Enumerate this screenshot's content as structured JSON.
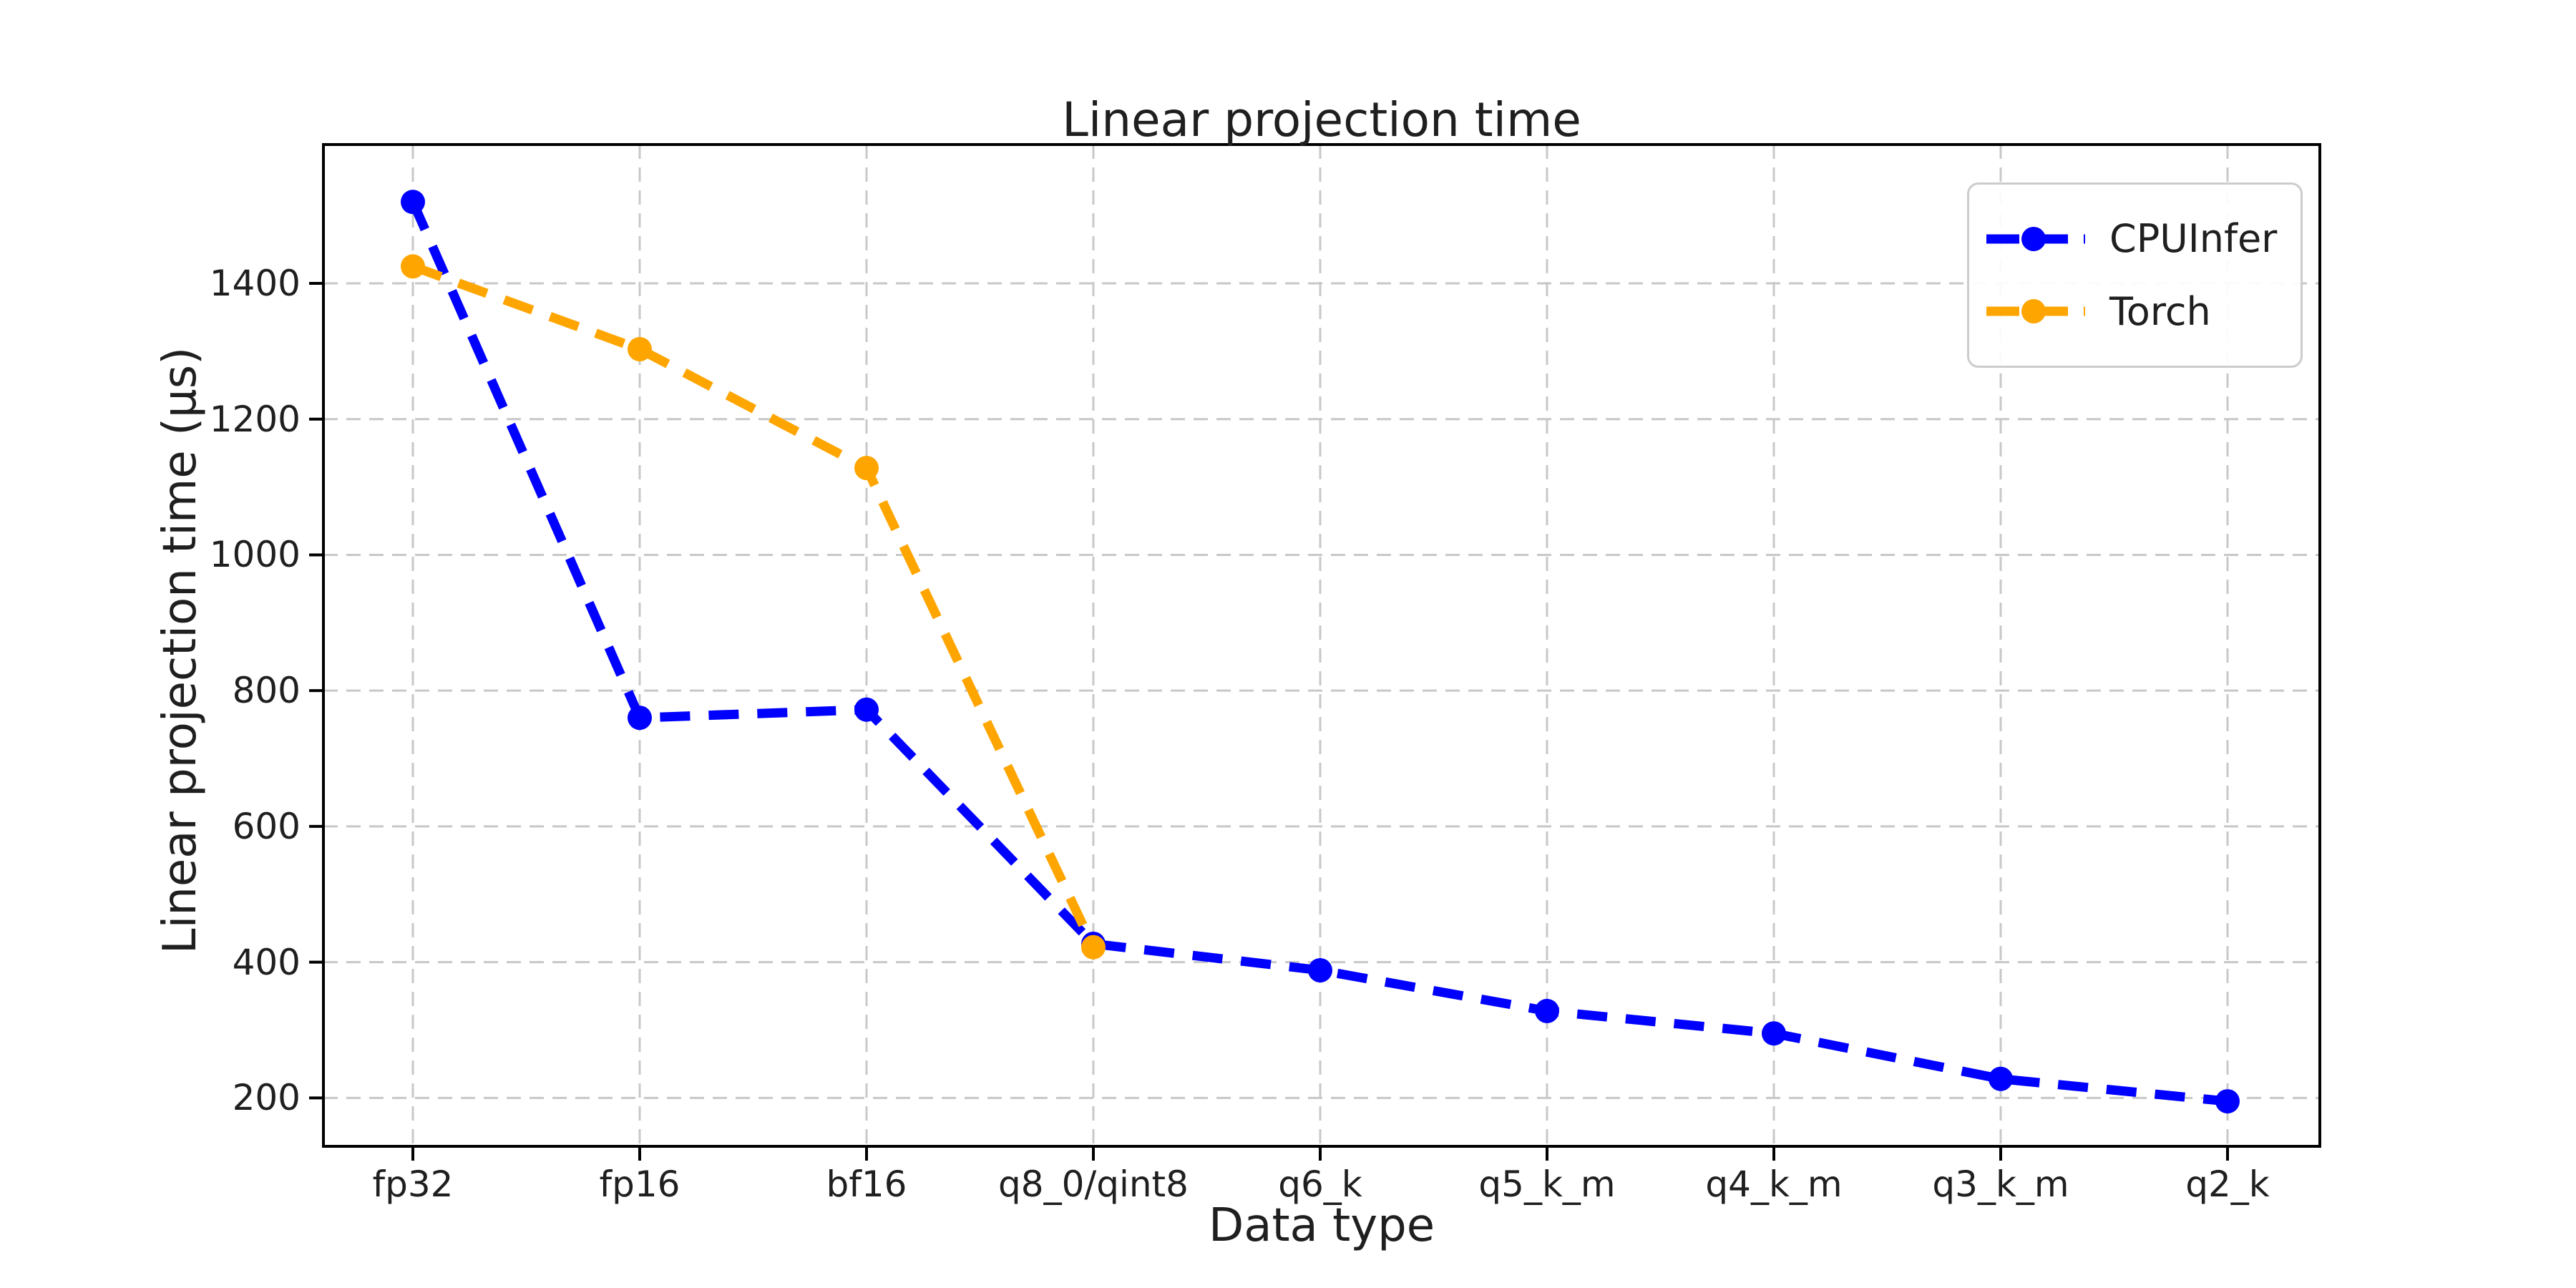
{
  "chart_data": {
    "type": "line",
    "title": "Linear projection time",
    "xlabel": "Data type",
    "ylabel": "Linear projection time (μs)",
    "categories": [
      "fp32",
      "fp16",
      "bf16",
      "q8_0/qint8",
      "q6_k",
      "q5_k_m",
      "q4_k_m",
      "q3_k_m",
      "q2_k"
    ],
    "series": [
      {
        "name": "CPUInfer",
        "color": "#0000ff",
        "values": [
          1520,
          760,
          772,
          427,
          388,
          328,
          295,
          228,
          195
        ]
      },
      {
        "name": "Torch",
        "color": "#ffa500",
        "values": [
          1425,
          1303,
          1128,
          422
        ]
      }
    ],
    "yticks": [
      200,
      400,
      600,
      800,
      1000,
      1200,
      1400
    ],
    "ylim": [
      129,
      1604
    ],
    "grid": true,
    "grid_style": "dashed",
    "grid_color": "#c8c8c8",
    "line_style": "dashed",
    "marker": "circle",
    "legend_position": "upper right",
    "axis_color": "#000000",
    "background_color": "#ffffff"
  }
}
